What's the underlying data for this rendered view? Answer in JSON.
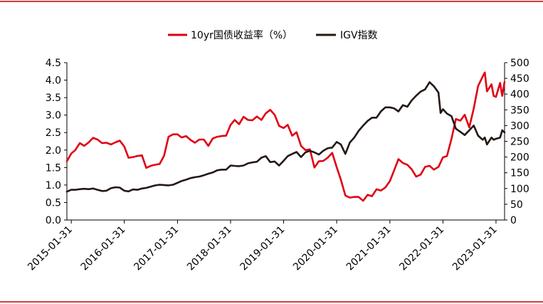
{
  "colors": {
    "frame_red": "#c00000",
    "series_red": "#e00012",
    "series_black": "#231815"
  },
  "chart_data": {
    "type": "line",
    "title": "",
    "xlabel": "",
    "ylabel": "",
    "legend_position": "top-center",
    "grid": false,
    "x_ticks": [
      "2015-01-31",
      "2016-01-31",
      "2017-01-31",
      "2018-01-31",
      "2019-01-31",
      "2020-01-31",
      "2021-01-31",
      "2022-01-31",
      "2023-01-31"
    ],
    "x_range": [
      "2015-01-01",
      "2023-03-31"
    ],
    "left_axis": {
      "min": 0.0,
      "max": 4.5,
      "ticks": [
        "0.0",
        "0.5",
        "1.0",
        "1.5",
        "2.0",
        "2.5",
        "3.0",
        "3.5",
        "4.0",
        "4.5"
      ]
    },
    "right_axis": {
      "min": 0,
      "max": 500,
      "ticks": [
        "0",
        "50",
        "100",
        "150",
        "200",
        "250",
        "300",
        "350",
        "400",
        "450",
        "500"
      ]
    },
    "series": [
      {
        "name": "10yr国债收益率（%）",
        "axis": "left",
        "color": "#e00012",
        "points": [
          [
            "2015-01-01",
            1.68
          ],
          [
            "2015-01-31",
            1.9
          ],
          [
            "2015-02-28",
            2.0
          ],
          [
            "2015-03-31",
            2.2
          ],
          [
            "2015-04-30",
            2.12
          ],
          [
            "2015-05-31",
            2.22
          ],
          [
            "2015-06-30",
            2.35
          ],
          [
            "2015-07-31",
            2.3
          ],
          [
            "2015-08-31",
            2.2
          ],
          [
            "2015-09-30",
            2.21
          ],
          [
            "2015-10-31",
            2.16
          ],
          [
            "2015-11-30",
            2.22
          ],
          [
            "2015-12-31",
            2.27
          ],
          [
            "2016-01-31",
            2.1
          ],
          [
            "2016-02-29",
            1.78
          ],
          [
            "2016-03-31",
            1.8
          ],
          [
            "2016-04-30",
            1.83
          ],
          [
            "2016-05-31",
            1.85
          ],
          [
            "2016-06-30",
            1.49
          ],
          [
            "2016-07-31",
            1.55
          ],
          [
            "2016-08-31",
            1.58
          ],
          [
            "2016-09-30",
            1.6
          ],
          [
            "2016-10-31",
            1.84
          ],
          [
            "2016-11-30",
            2.38
          ],
          [
            "2016-12-31",
            2.45
          ],
          [
            "2017-01-31",
            2.45
          ],
          [
            "2017-02-28",
            2.36
          ],
          [
            "2017-03-31",
            2.4
          ],
          [
            "2017-04-30",
            2.29
          ],
          [
            "2017-05-31",
            2.21
          ],
          [
            "2017-06-30",
            2.3
          ],
          [
            "2017-07-31",
            2.3
          ],
          [
            "2017-08-31",
            2.12
          ],
          [
            "2017-09-30",
            2.33
          ],
          [
            "2017-10-31",
            2.38
          ],
          [
            "2017-11-30",
            2.4
          ],
          [
            "2017-12-31",
            2.41
          ],
          [
            "2018-01-31",
            2.72
          ],
          [
            "2018-02-28",
            2.86
          ],
          [
            "2018-03-31",
            2.74
          ],
          [
            "2018-04-30",
            2.95
          ],
          [
            "2018-05-31",
            2.86
          ],
          [
            "2018-06-30",
            2.85
          ],
          [
            "2018-07-31",
            2.96
          ],
          [
            "2018-08-31",
            2.86
          ],
          [
            "2018-09-30",
            3.05
          ],
          [
            "2018-10-31",
            3.15
          ],
          [
            "2018-11-30",
            3.01
          ],
          [
            "2018-12-31",
            2.69
          ],
          [
            "2019-01-31",
            2.63
          ],
          [
            "2019-02-28",
            2.72
          ],
          [
            "2019-03-31",
            2.41
          ],
          [
            "2019-04-30",
            2.51
          ],
          [
            "2019-05-31",
            2.12
          ],
          [
            "2019-06-30",
            2.0
          ],
          [
            "2019-07-31",
            2.02
          ],
          [
            "2019-08-31",
            1.5
          ],
          [
            "2019-09-30",
            1.68
          ],
          [
            "2019-10-31",
            1.69
          ],
          [
            "2019-11-30",
            1.78
          ],
          [
            "2019-12-31",
            1.92
          ],
          [
            "2020-01-31",
            1.51
          ],
          [
            "2020-02-29",
            1.15
          ],
          [
            "2020-03-31",
            0.7
          ],
          [
            "2020-04-30",
            0.64
          ],
          [
            "2020-05-31",
            0.66
          ],
          [
            "2020-06-30",
            0.66
          ],
          [
            "2020-07-31",
            0.55
          ],
          [
            "2020-08-31",
            0.72
          ],
          [
            "2020-09-30",
            0.68
          ],
          [
            "2020-10-31",
            0.88
          ],
          [
            "2020-11-30",
            0.84
          ],
          [
            "2020-12-31",
            0.93
          ],
          [
            "2021-01-31",
            1.11
          ],
          [
            "2021-02-28",
            1.41
          ],
          [
            "2021-03-31",
            1.74
          ],
          [
            "2021-04-30",
            1.63
          ],
          [
            "2021-05-31",
            1.58
          ],
          [
            "2021-06-30",
            1.45
          ],
          [
            "2021-07-31",
            1.24
          ],
          [
            "2021-08-31",
            1.3
          ],
          [
            "2021-09-30",
            1.52
          ],
          [
            "2021-10-31",
            1.55
          ],
          [
            "2021-11-30",
            1.44
          ],
          [
            "2021-12-31",
            1.52
          ],
          [
            "2022-01-31",
            1.79
          ],
          [
            "2022-02-28",
            1.83
          ],
          [
            "2022-03-31",
            2.32
          ],
          [
            "2022-04-30",
            2.89
          ],
          [
            "2022-05-31",
            2.84
          ],
          [
            "2022-06-30",
            3.01
          ],
          [
            "2022-07-31",
            2.65
          ],
          [
            "2022-08-31",
            3.19
          ],
          [
            "2022-09-30",
            3.83
          ],
          [
            "2022-10-31",
            4.1
          ],
          [
            "2022-11-15",
            4.22
          ],
          [
            "2022-11-30",
            3.68
          ],
          [
            "2022-12-31",
            3.88
          ],
          [
            "2023-01-15",
            3.55
          ],
          [
            "2023-01-31",
            3.52
          ],
          [
            "2023-02-28",
            3.92
          ],
          [
            "2023-03-15",
            3.55
          ],
          [
            "2023-03-31",
            3.95
          ]
        ]
      },
      {
        "name": "IGV指数",
        "axis": "right",
        "color": "#231815",
        "points": [
          [
            "2015-01-01",
            90
          ],
          [
            "2015-01-31",
            96
          ],
          [
            "2015-02-28",
            96
          ],
          [
            "2015-03-31",
            98
          ],
          [
            "2015-04-30",
            99
          ],
          [
            "2015-05-31",
            98
          ],
          [
            "2015-06-30",
            100
          ],
          [
            "2015-07-31",
            96
          ],
          [
            "2015-08-31",
            92
          ],
          [
            "2015-09-30",
            93
          ],
          [
            "2015-10-31",
            101
          ],
          [
            "2015-11-30",
            104
          ],
          [
            "2015-12-31",
            103
          ],
          [
            "2016-01-31",
            93
          ],
          [
            "2016-02-29",
            91
          ],
          [
            "2016-03-31",
            97
          ],
          [
            "2016-04-30",
            96
          ],
          [
            "2016-05-31",
            100
          ],
          [
            "2016-06-30",
            102
          ],
          [
            "2016-07-31",
            106
          ],
          [
            "2016-08-31",
            110
          ],
          [
            "2016-09-30",
            112
          ],
          [
            "2016-10-31",
            111
          ],
          [
            "2016-11-30",
            110
          ],
          [
            "2016-12-31",
            112
          ],
          [
            "2017-01-31",
            118
          ],
          [
            "2017-02-28",
            124
          ],
          [
            "2017-03-31",
            128
          ],
          [
            "2017-04-30",
            133
          ],
          [
            "2017-05-31",
            136
          ],
          [
            "2017-06-30",
            138
          ],
          [
            "2017-07-31",
            142
          ],
          [
            "2017-08-31",
            147
          ],
          [
            "2017-09-30",
            151
          ],
          [
            "2017-10-31",
            158
          ],
          [
            "2017-11-30",
            160
          ],
          [
            "2017-12-31",
            160
          ],
          [
            "2018-01-31",
            173
          ],
          [
            "2018-02-28",
            172
          ],
          [
            "2018-03-31",
            171
          ],
          [
            "2018-04-30",
            173
          ],
          [
            "2018-05-31",
            180
          ],
          [
            "2018-06-30",
            183
          ],
          [
            "2018-07-31",
            185
          ],
          [
            "2018-08-31",
            198
          ],
          [
            "2018-09-30",
            203
          ],
          [
            "2018-10-31",
            184
          ],
          [
            "2018-11-30",
            186
          ],
          [
            "2018-12-31",
            173
          ],
          [
            "2019-01-31",
            188
          ],
          [
            "2019-02-28",
            203
          ],
          [
            "2019-03-31",
            210
          ],
          [
            "2019-04-30",
            216
          ],
          [
            "2019-05-31",
            200
          ],
          [
            "2019-06-30",
            215
          ],
          [
            "2019-07-31",
            220
          ],
          [
            "2019-08-31",
            215
          ],
          [
            "2019-09-30",
            208
          ],
          [
            "2019-10-31",
            220
          ],
          [
            "2019-11-30",
            228
          ],
          [
            "2019-12-31",
            230
          ],
          [
            "2020-01-31",
            248
          ],
          [
            "2020-02-29",
            240
          ],
          [
            "2020-03-31",
            210
          ],
          [
            "2020-04-30",
            246
          ],
          [
            "2020-05-31",
            262
          ],
          [
            "2020-06-30",
            283
          ],
          [
            "2020-07-31",
            300
          ],
          [
            "2020-08-31",
            315
          ],
          [
            "2020-09-30",
            325
          ],
          [
            "2020-10-31",
            325
          ],
          [
            "2020-11-30",
            345
          ],
          [
            "2020-12-31",
            358
          ],
          [
            "2021-01-31",
            358
          ],
          [
            "2021-02-28",
            355
          ],
          [
            "2021-03-31",
            345
          ],
          [
            "2021-04-30",
            365
          ],
          [
            "2021-05-31",
            360
          ],
          [
            "2021-06-30",
            380
          ],
          [
            "2021-07-31",
            395
          ],
          [
            "2021-08-31",
            408
          ],
          [
            "2021-09-30",
            415
          ],
          [
            "2021-10-31",
            438
          ],
          [
            "2021-11-30",
            425
          ],
          [
            "2021-12-31",
            405
          ],
          [
            "2022-01-15",
            340
          ],
          [
            "2022-01-31",
            352
          ],
          [
            "2022-02-28",
            338
          ],
          [
            "2022-03-31",
            330
          ],
          [
            "2022-04-30",
            290
          ],
          [
            "2022-05-31",
            280
          ],
          [
            "2022-06-30",
            270
          ],
          [
            "2022-07-31",
            285
          ],
          [
            "2022-08-31",
            300
          ],
          [
            "2022-09-30",
            268
          ],
          [
            "2022-10-31",
            255
          ],
          [
            "2022-11-15",
            262
          ],
          [
            "2022-11-30",
            240
          ],
          [
            "2022-12-31",
            262
          ],
          [
            "2023-01-15",
            255
          ],
          [
            "2023-01-31",
            258
          ],
          [
            "2023-02-28",
            262
          ],
          [
            "2023-03-15",
            285
          ],
          [
            "2023-03-31",
            278
          ]
        ]
      }
    ]
  }
}
